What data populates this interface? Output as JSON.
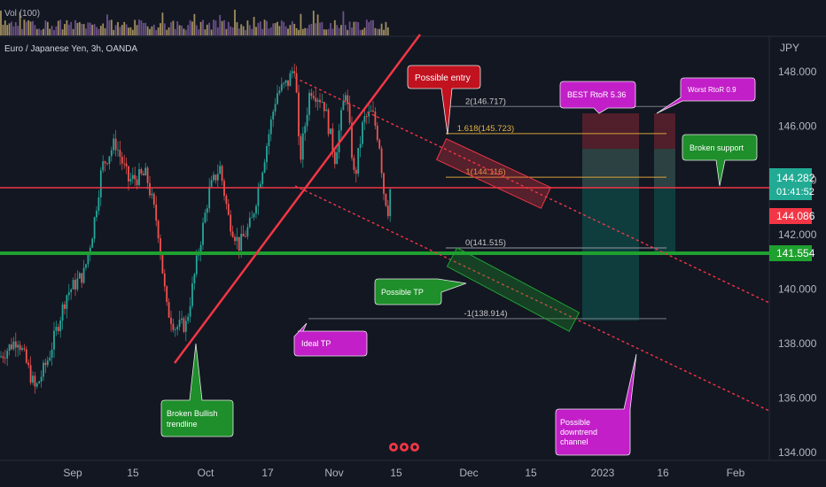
{
  "header": {
    "volume_label": "Vol (100)",
    "symbol": "Euro / Japanese Yen, 3h, OANDA"
  },
  "chart_data": {
    "type": "candlestick",
    "symbol": "EUR/JPY",
    "timeframe": "3h",
    "price_axis": {
      "currency": "JPY",
      "ticks": [
        "148.000",
        "146.000",
        "144.000",
        "142.000",
        "140.000",
        "138.000",
        "136.000",
        "134.000"
      ],
      "ylim": [
        133.7,
        149.3
      ]
    },
    "time_axis": {
      "ticks": [
        "Sep",
        "15",
        "Oct",
        "17",
        "Nov",
        "15",
        "Dec",
        "15",
        "2023",
        "16",
        "Feb"
      ]
    },
    "price_labels": {
      "current": "144.282",
      "countdown": "01:41:52",
      "line_red": "144.086",
      "line_green": "141.554"
    },
    "fibonacci": [
      {
        "label": "2(146.717)",
        "value": 146.717
      },
      {
        "label": "1.618(145.723)",
        "value": 145.723
      },
      {
        "label": "1(144.116)",
        "value": 144.116
      },
      {
        "label": "0(141.515)",
        "value": 141.515
      },
      {
        "label": "-1(138.914)",
        "value": 138.914
      }
    ],
    "horizontal_levels": [
      {
        "name": "resistance",
        "value": 144.086,
        "color": "#f23645"
      },
      {
        "name": "support",
        "value": 141.554,
        "color": "#089981"
      }
    ],
    "annotations": {
      "possible_entry": "Possible entry",
      "best_rtor": "BEST RtoR 5.36",
      "worst_rtor": "Worst RtoR 0.9",
      "broken_support": "Broken  support",
      "possible_tp": "Possible TP",
      "ideal_tp": "Ideal TP",
      "broken_trendline": [
        "Broken Bullish",
        "trendline"
      ],
      "downtrend_channel": [
        "Possible",
        "downtrend",
        "channel"
      ]
    }
  },
  "colors": {
    "background": "#131722",
    "axis_text": "#b2b5be",
    "red": "#f23645",
    "green": "#1fa12f",
    "teal": "#22ab94",
    "magenta": "#c21fc8",
    "callout_red": "#c1121f",
    "callout_green": "#1e8f2a"
  }
}
